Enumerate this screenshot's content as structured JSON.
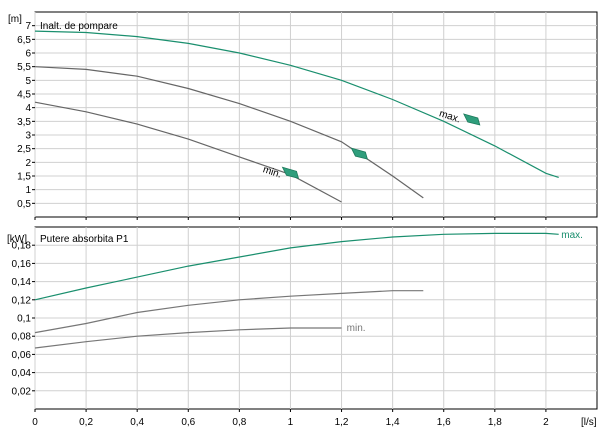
{
  "chart_data": [
    {
      "type": "line",
      "title": "Inalt. de pompare",
      "unit_label": "[m]",
      "y_ticks": [
        "0,5",
        "1",
        "1,5",
        "2",
        "2,5",
        "3",
        "3,5",
        "4",
        "4,5",
        "5",
        "5,5",
        "6",
        "6,5",
        "7"
      ],
      "y_tick_values": [
        0.5,
        1,
        1.5,
        2,
        2.5,
        3,
        3.5,
        4,
        4.5,
        5,
        5.5,
        6,
        6.5,
        7
      ],
      "ylim": [
        0,
        7.5
      ],
      "xlim": [
        0,
        2.2
      ],
      "annotations": [
        {
          "text": "max.",
          "x": 1.58,
          "y": 3.7
        },
        {
          "text": "min.",
          "x": 0.89,
          "y": 1.65
        }
      ],
      "markers": [
        {
          "x": 1.71,
          "y": 3.55
        },
        {
          "x": 1.27,
          "y": 2.3
        },
        {
          "x": 1.0,
          "y": 1.6
        }
      ],
      "series": [
        {
          "color": "#1a8f6e",
          "points": [
            [
              0,
              6.8
            ],
            [
              0.2,
              6.75
            ],
            [
              0.4,
              6.6
            ],
            [
              0.6,
              6.35
            ],
            [
              0.8,
              6.0
            ],
            [
              1.0,
              5.55
            ],
            [
              1.2,
              5.0
            ],
            [
              1.4,
              4.3
            ],
            [
              1.6,
              3.5
            ],
            [
              1.8,
              2.6
            ],
            [
              2.0,
              1.6
            ],
            [
              2.05,
              1.45
            ]
          ]
        },
        {
          "color": "#666666",
          "points": [
            [
              0,
              5.5
            ],
            [
              0.2,
              5.4
            ],
            [
              0.4,
              5.15
            ],
            [
              0.6,
              4.7
            ],
            [
              0.8,
              4.15
            ],
            [
              1.0,
              3.5
            ],
            [
              1.2,
              2.75
            ],
            [
              1.4,
              1.5
            ],
            [
              1.52,
              0.7
            ]
          ]
        },
        {
          "color": "#666666",
          "points": [
            [
              0,
              4.2
            ],
            [
              0.2,
              3.85
            ],
            [
              0.4,
              3.4
            ],
            [
              0.6,
              2.85
            ],
            [
              0.8,
              2.2
            ],
            [
              1.0,
              1.55
            ],
            [
              1.2,
              0.55
            ]
          ]
        }
      ]
    },
    {
      "type": "line",
      "title": "Putere absorbita P1",
      "unit_label": "[kW]",
      "y_ticks": [
        "0,02",
        "0,04",
        "0,06",
        "0,08",
        "0,1",
        "0,12",
        "0,14",
        "0,16",
        "0,18"
      ],
      "y_tick_values": [
        0.02,
        0.04,
        0.06,
        0.08,
        0.1,
        0.12,
        0.14,
        0.16,
        0.18
      ],
      "ylim": [
        0,
        0.2
      ],
      "xlim": [
        0,
        2.2
      ],
      "x_ticks": [
        "0",
        "0,2",
        "0,4",
        "0,6",
        "0,8",
        "1",
        "1,2",
        "1,4",
        "1,6",
        "1,8",
        "2"
      ],
      "x_tick_values": [
        0,
        0.2,
        0.4,
        0.6,
        0.8,
        1,
        1.2,
        1.4,
        1.6,
        1.8,
        2
      ],
      "x_unit_label": "[l/s]",
      "series_labels": [
        {
          "text": "max.",
          "x": 2.06,
          "y": 0.191,
          "color": "#1a8f6e"
        },
        {
          "text": "min.",
          "x": 1.22,
          "y": 0.089,
          "color": "#777777"
        }
      ],
      "series": [
        {
          "color": "#1a8f6e",
          "points": [
            [
              0,
              0.12
            ],
            [
              0.2,
              0.133
            ],
            [
              0.4,
              0.145
            ],
            [
              0.6,
              0.157
            ],
            [
              0.8,
              0.167
            ],
            [
              1.0,
              0.177
            ],
            [
              1.2,
              0.184
            ],
            [
              1.4,
              0.189
            ],
            [
              1.6,
              0.192
            ],
            [
              1.8,
              0.193
            ],
            [
              2.0,
              0.193
            ],
            [
              2.05,
              0.192
            ]
          ]
        },
        {
          "color": "#777777",
          "points": [
            [
              0,
              0.084
            ],
            [
              0.2,
              0.094
            ],
            [
              0.4,
              0.106
            ],
            [
              0.6,
              0.114
            ],
            [
              0.8,
              0.12
            ],
            [
              1.0,
              0.124
            ],
            [
              1.2,
              0.127
            ],
            [
              1.4,
              0.13
            ],
            [
              1.52,
              0.13
            ]
          ]
        },
        {
          "color": "#777777",
          "points": [
            [
              0,
              0.067
            ],
            [
              0.2,
              0.074
            ],
            [
              0.4,
              0.08
            ],
            [
              0.6,
              0.084
            ],
            [
              0.8,
              0.087
            ],
            [
              1.0,
              0.089
            ],
            [
              1.2,
              0.089
            ]
          ]
        }
      ]
    }
  ]
}
